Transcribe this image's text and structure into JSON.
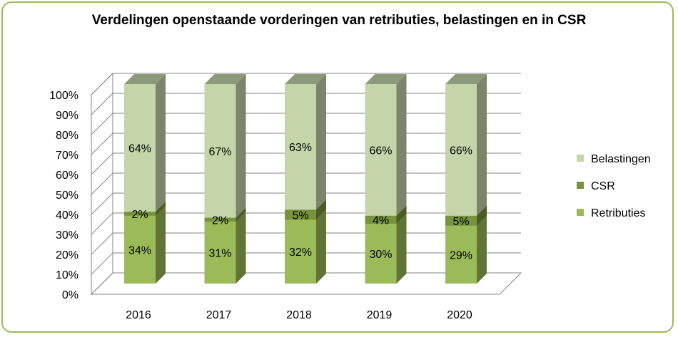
{
  "chart_data": {
    "type": "bar",
    "stacked": true,
    "percent": true,
    "three_d": true,
    "title": "Verdelingen openstaande vorderingen van retributies, belastingen en in CSR",
    "categories": [
      "2016",
      "2017",
      "2018",
      "2019",
      "2020"
    ],
    "series": [
      {
        "name": "Retributies",
        "values": [
          34,
          31,
          32,
          30,
          29
        ],
        "labels": [
          "34%",
          "31%",
          "32%",
          "30%",
          "29%"
        ],
        "color": "#9bbb59"
      },
      {
        "name": "CSR",
        "values": [
          2,
          2,
          5,
          4,
          5
        ],
        "labels": [
          "2%",
          "2%",
          "5%",
          "4%",
          "5%"
        ],
        "color": "#77933c"
      },
      {
        "name": "Belastingen",
        "values": [
          64,
          67,
          63,
          66,
          66
        ],
        "labels": [
          "64%",
          "67%",
          "63%",
          "66%",
          "66%"
        ],
        "color": "#c4d6a9"
      }
    ],
    "y_ticks": [
      "0%",
      "10%",
      "20%",
      "30%",
      "40%",
      "50%",
      "60%",
      "70%",
      "80%",
      "90%",
      "100%"
    ],
    "ylim": [
      0,
      100
    ],
    "grid": true,
    "legend_position": "right",
    "legend_order": [
      "Belastingen",
      "CSR",
      "Retributies"
    ]
  },
  "colors": {
    "frame_border": "#9bbb59",
    "grid": "#868686"
  }
}
